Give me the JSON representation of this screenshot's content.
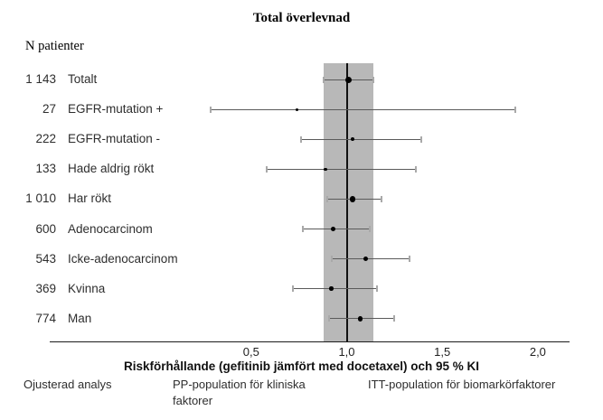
{
  "title": "Total överlevnad",
  "col_header": "N patienter",
  "chart_data": {
    "type": "forest",
    "title": "Total överlevnad",
    "xlabel": "Riskförhållande (gefitinib jämfört med docetaxel) och 95 % KI",
    "x_ticks": [
      {
        "value": 0.5,
        "label": "0,5"
      },
      {
        "value": 1.0,
        "label": "1,0"
      },
      {
        "value": 1.5,
        "label": "1,5"
      },
      {
        "value": 2.0,
        "label": "2,0"
      }
    ],
    "x_range_drawn": [
      -0.55,
      2.17
    ],
    "reference_line": 1.0,
    "shaded_band": {
      "from": 0.88,
      "to": 1.14,
      "color": "#b8b8b8"
    },
    "grid": false,
    "rows": [
      {
        "n": "1 143",
        "label": "Totalt",
        "hr": 1.01,
        "ci_low": 0.88,
        "ci_high": 1.14,
        "marker_px": 7
      },
      {
        "n": "27",
        "label": "EGFR-mutation +",
        "hr": 0.74,
        "ci_low": 0.29,
        "ci_high": 1.88,
        "marker_px": 3
      },
      {
        "n": "222",
        "label": "EGFR-mutation -",
        "hr": 1.03,
        "ci_low": 0.76,
        "ci_high": 1.39,
        "marker_px": 4
      },
      {
        "n": "133",
        "label": "Hade aldrig rökt",
        "hr": 0.89,
        "ci_low": 0.58,
        "ci_high": 1.36,
        "marker_px": 3.5
      },
      {
        "n": "1 010",
        "label": "Har rökt",
        "hr": 1.03,
        "ci_low": 0.9,
        "ci_high": 1.18,
        "marker_px": 6.5
      },
      {
        "n": "600",
        "label": "Adenocarcinom",
        "hr": 0.93,
        "ci_low": 0.77,
        "ci_high": 1.12,
        "marker_px": 5.5
      },
      {
        "n": "543",
        "label": "Icke-adenocarcinom",
        "hr": 1.1,
        "ci_low": 0.92,
        "ci_high": 1.33,
        "marker_px": 5.5
      },
      {
        "n": "369",
        "label": "Kvinna",
        "hr": 0.92,
        "ci_low": 0.72,
        "ci_high": 1.16,
        "marker_px": 4.5
      },
      {
        "n": "774",
        "label": "Man",
        "hr": 1.07,
        "ci_low": 0.91,
        "ci_high": 1.25,
        "marker_px": 5.5
      }
    ],
    "footnotes": [
      "Ojusterad analys",
      "PP-population för kliniska faktorer",
      "ITT-population för biomarkörfaktorer"
    ],
    "colors": {
      "band": "#b8b8b8",
      "ci_line": "#5a5a5a",
      "ci_cap": "#a9a9a9",
      "marker": "#000000",
      "reference_line": "#111111"
    }
  },
  "footer": {
    "note1": "Ojusterad analys",
    "note2": "PP-population för kliniska faktorer",
    "note3": "ITT-population för biomarkörfaktorer"
  }
}
